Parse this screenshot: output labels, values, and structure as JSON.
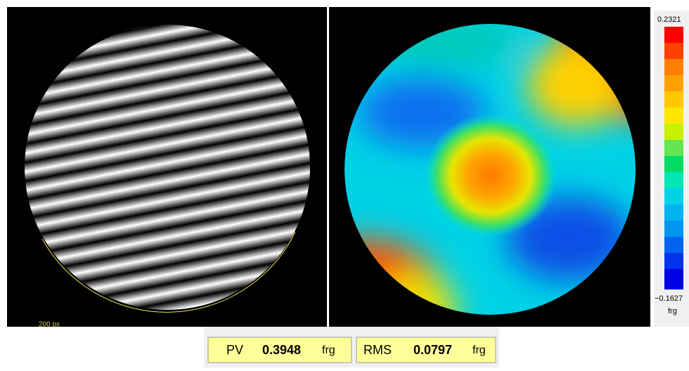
{
  "fringe_view": {
    "scale_label": "200 px"
  },
  "color_bar": {
    "max_label": "0.2321",
    "min_label": "−0.1627",
    "unit": "frg"
  },
  "results": {
    "pv_label": "PV",
    "pv_value": "0.3948",
    "pv_unit": "frg",
    "rms_label": "RMS",
    "rms_value": "0.0797",
    "rms_unit": "frg"
  }
}
